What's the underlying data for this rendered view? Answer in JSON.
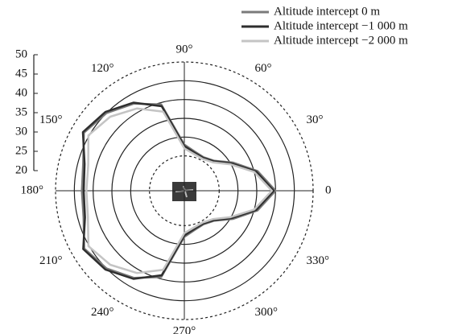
{
  "chart_data": {
    "type": "polar",
    "theta": [
      0,
      15,
      30,
      45,
      60,
      75,
      90,
      105,
      120,
      135,
      150,
      165,
      180,
      195,
      210,
      225,
      240,
      255,
      270,
      285,
      300,
      315,
      330,
      345
    ],
    "series": [
      {
        "name": "Altitude intercept 0 m",
        "color": "#7a7a7a",
        "values": [
          40,
          35.9,
          30.7,
          27,
          26,
          26.5,
          28,
          39.5,
          42.5,
          45,
          46.6,
          43.6,
          43,
          43.5,
          46.5,
          45,
          42.5,
          39.5,
          28,
          26.5,
          26,
          27,
          30.7,
          35.9
        ]
      },
      {
        "name": "Altitude intercept −1 000 m",
        "color": "#2e2e2e",
        "values": [
          39.5,
          35.5,
          30.3,
          26.8,
          25.8,
          26.2,
          27.6,
          39,
          42.8,
          45.4,
          46.9,
          43.2,
          42.5,
          43.1,
          46.8,
          45.4,
          42.8,
          39,
          27.6,
          26.2,
          25.8,
          26.8,
          30.3,
          35.5
        ]
      },
      {
        "name": "Altitude intercept −2 000 m",
        "color": "#c4c4c4",
        "values": [
          39,
          35,
          29.8,
          26.4,
          25.5,
          25.8,
          27,
          37.5,
          41,
          43.6,
          45.2,
          42.2,
          41.8,
          42.3,
          45.2,
          43.6,
          41,
          37.5,
          27,
          25.8,
          25.5,
          26.4,
          29.8,
          35
        ]
      }
    ],
    "rlim": [
      20,
      50
    ],
    "rticks": [
      20,
      25,
      30,
      35,
      40,
      45,
      50
    ],
    "thetaticks": [
      0,
      {
        "value": 30,
        "label": "30°"
      },
      {
        "value": 60,
        "label": "60°"
      },
      {
        "value": 90,
        "label": "90°"
      },
      {
        "value": 120,
        "label": "120°"
      },
      {
        "value": 150,
        "label": "150°"
      },
      {
        "value": 180,
        "label": "180°"
      },
      {
        "value": 210,
        "label": "210°"
      },
      {
        "value": 240,
        "label": "240°"
      },
      {
        "value": 270,
        "label": "270°"
      },
      {
        "value": 300,
        "label": "300°"
      },
      {
        "value": 330,
        "label": "330°"
      }
    ],
    "legend": "top-right"
  }
}
